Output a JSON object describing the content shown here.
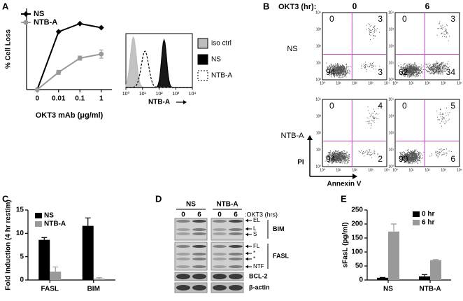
{
  "panel_letters": [
    "A",
    "B",
    "C",
    "D",
    "E"
  ],
  "chart_data": [
    {
      "type": "line",
      "ylabel": "% Cell Loss",
      "xlabel": "OKT3 mAb (μg/ml)",
      "categories": [
        "0",
        "0.01",
        "0.1",
        "1"
      ],
      "ylim": [
        0,
        80
      ],
      "series": [
        {
          "name": "NS",
          "color": "#000000",
          "marker": "diamond",
          "values": [
            0,
            57,
            65,
            61
          ]
        },
        {
          "name": "NTB-A",
          "color": "#999999",
          "marker": "circle",
          "values": [
            0,
            17,
            31,
            35
          ],
          "errors": [
            0,
            2,
            2,
            4
          ]
        }
      ]
    },
    {
      "type": "bar",
      "ylabel": "Fold Induction (4 hr restim)",
      "categories": [
        "FASL",
        "BIM"
      ],
      "ylim": [
        0,
        15
      ],
      "yticks": [
        0,
        5,
        10,
        15
      ],
      "series": [
        {
          "name": "NS",
          "color": "#000000",
          "values": [
            8.6,
            11.6
          ],
          "errors": [
            0.5,
            1.7
          ]
        },
        {
          "name": "NTB-A",
          "color": "#999999",
          "values": [
            1.8,
            0.3
          ],
          "errors": [
            1.0,
            0.2
          ]
        }
      ]
    },
    {
      "type": "bar",
      "ylabel": "sFasL (pg/ml)",
      "categories": [
        "NS",
        "NTB-A"
      ],
      "ylim": [
        0,
        250
      ],
      "yticks": [
        0,
        50,
        100,
        150,
        200,
        250
      ],
      "series": [
        {
          "name": "0 hr",
          "color": "#000000",
          "values": [
            8,
            13
          ],
          "errors": [
            1,
            6
          ]
        },
        {
          "name": "6 hr",
          "color": "#999999",
          "values": [
            173,
            71
          ],
          "errors": [
            27,
            2
          ]
        }
      ]
    }
  ],
  "histogram": {
    "xlabel": "NTB-A",
    "xticks": [
      {
        "value": 1,
        "label": "10⁰"
      },
      {
        "value": 10,
        "label": "10¹"
      },
      {
        "value": 100,
        "label": "10²"
      },
      {
        "value": 1000,
        "label": "10³"
      },
      {
        "value": 10000,
        "label": "10⁴"
      }
    ],
    "legend": [
      {
        "name": "iso ctrl",
        "color": "#bdbdbd"
      },
      {
        "name": "NS",
        "color": "#000000"
      },
      {
        "name": "NTB-A",
        "color": "#ffffff",
        "dashed": true
      }
    ]
  },
  "flow": {
    "columns_header": "OKT3 (hr):",
    "columns": [
      "0",
      "6"
    ],
    "rows": [
      "NS",
      "NTB-A"
    ],
    "ticks": [
      "10⁰",
      "10¹",
      "10²",
      "10³",
      "10⁴"
    ],
    "ylabel": "PI",
    "xlabel": "Annexin V",
    "plots": [
      [
        0,
        3,
        94,
        3
      ],
      [
        0,
        3,
        62,
        34
      ],
      [
        0,
        4,
        94,
        2
      ],
      [
        0,
        5,
        90,
        6
      ]
    ]
  },
  "blot": {
    "groups": [
      "NS",
      "NTB-A"
    ],
    "lanes": [
      "0",
      "6",
      "0",
      "6"
    ],
    "lane_label": ":OKT3 (hrs)",
    "panels": [
      {
        "name": "BIM",
        "bands": [
          "EL",
          "L",
          "S"
        ]
      },
      {
        "name": "FASL",
        "bands": [
          "FL",
          "*",
          "*",
          "NTF"
        ]
      },
      {
        "name": "BCL-2"
      },
      {
        "name": "β-actin"
      }
    ]
  }
}
